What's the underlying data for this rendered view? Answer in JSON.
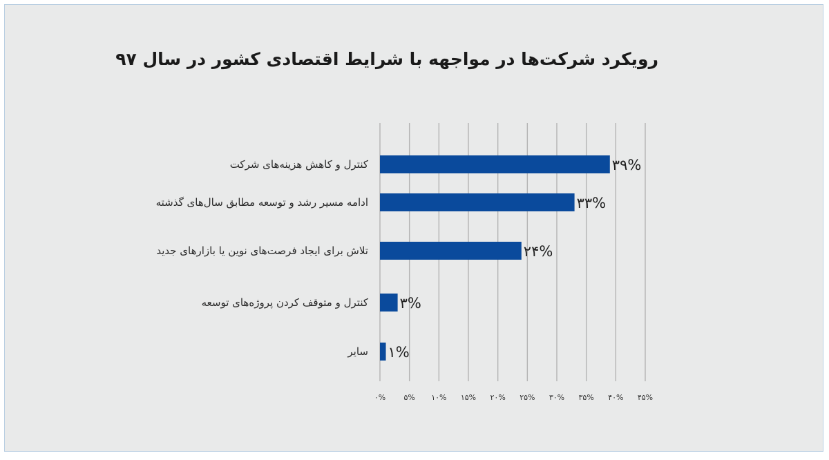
{
  "chart_data": {
    "type": "bar",
    "orientation": "horizontal",
    "title": "رویکرد شرکت‌ها در مواجهه با شرایط اقتصادی کشور در سال ۹۷",
    "categories": [
      "کنترل و کاهش هزینه‌های شرکت",
      "ادامه مسیر رشد و توسعه مطابق سال‌های گذشته",
      "تلاش برای ایجاد فرصت‌های نوین یا بازارهای جدید",
      "کنترل و متوقف کردن پروژه‌های توسعه",
      "سایر"
    ],
    "values": [
      39,
      33,
      24,
      3,
      1
    ],
    "data_labels": [
      "۳۹%",
      "۳۳%",
      "۲۴%",
      "۳%",
      "۱%"
    ],
    "xlim": [
      0,
      45
    ],
    "x_ticks": [
      0,
      5,
      10,
      15,
      20,
      25,
      30,
      35,
      40,
      45
    ],
    "x_tick_labels": [
      "۰%",
      "۵%",
      "۱۰%",
      "۱۵%",
      "۲۰%",
      "۲۵%",
      "۳۰%",
      "۳۵%",
      "۴۰%",
      "۴۵%"
    ],
    "grid": true,
    "bar_color": "#0a4a9c",
    "grid_color": "#b3b3b3"
  }
}
